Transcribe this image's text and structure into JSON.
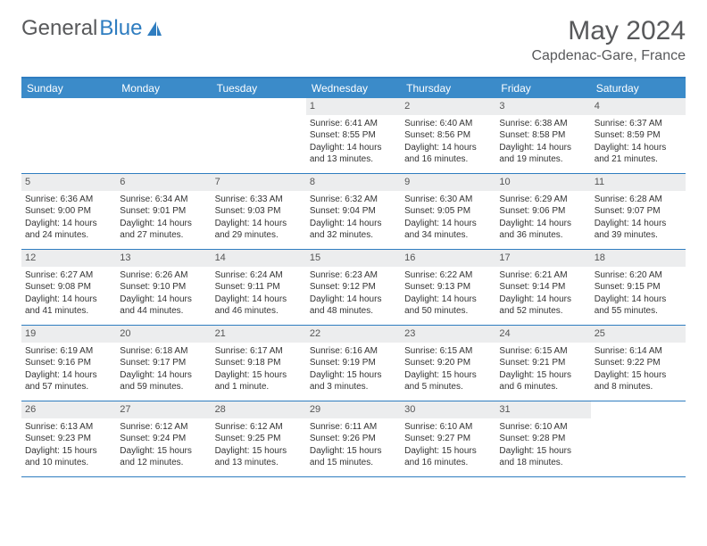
{
  "logo": {
    "text_a": "General",
    "text_b": "Blue"
  },
  "title": "May 2024",
  "location": "Capdenac-Gare, France",
  "colors": {
    "accent": "#2f7dc0",
    "header_bg": "#3b8bc9",
    "daynum_bg": "#ecedee",
    "text": "#58595b"
  },
  "day_names": [
    "Sunday",
    "Monday",
    "Tuesday",
    "Wednesday",
    "Thursday",
    "Friday",
    "Saturday"
  ],
  "weeks": [
    [
      {
        "n": "",
        "sr": "",
        "ss": "",
        "d1": "",
        "d2": ""
      },
      {
        "n": "",
        "sr": "",
        "ss": "",
        "d1": "",
        "d2": ""
      },
      {
        "n": "",
        "sr": "",
        "ss": "",
        "d1": "",
        "d2": ""
      },
      {
        "n": "1",
        "sr": "Sunrise: 6:41 AM",
        "ss": "Sunset: 8:55 PM",
        "d1": "Daylight: 14 hours",
        "d2": "and 13 minutes."
      },
      {
        "n": "2",
        "sr": "Sunrise: 6:40 AM",
        "ss": "Sunset: 8:56 PM",
        "d1": "Daylight: 14 hours",
        "d2": "and 16 minutes."
      },
      {
        "n": "3",
        "sr": "Sunrise: 6:38 AM",
        "ss": "Sunset: 8:58 PM",
        "d1": "Daylight: 14 hours",
        "d2": "and 19 minutes."
      },
      {
        "n": "4",
        "sr": "Sunrise: 6:37 AM",
        "ss": "Sunset: 8:59 PM",
        "d1": "Daylight: 14 hours",
        "d2": "and 21 minutes."
      }
    ],
    [
      {
        "n": "5",
        "sr": "Sunrise: 6:36 AM",
        "ss": "Sunset: 9:00 PM",
        "d1": "Daylight: 14 hours",
        "d2": "and 24 minutes."
      },
      {
        "n": "6",
        "sr": "Sunrise: 6:34 AM",
        "ss": "Sunset: 9:01 PM",
        "d1": "Daylight: 14 hours",
        "d2": "and 27 minutes."
      },
      {
        "n": "7",
        "sr": "Sunrise: 6:33 AM",
        "ss": "Sunset: 9:03 PM",
        "d1": "Daylight: 14 hours",
        "d2": "and 29 minutes."
      },
      {
        "n": "8",
        "sr": "Sunrise: 6:32 AM",
        "ss": "Sunset: 9:04 PM",
        "d1": "Daylight: 14 hours",
        "d2": "and 32 minutes."
      },
      {
        "n": "9",
        "sr": "Sunrise: 6:30 AM",
        "ss": "Sunset: 9:05 PM",
        "d1": "Daylight: 14 hours",
        "d2": "and 34 minutes."
      },
      {
        "n": "10",
        "sr": "Sunrise: 6:29 AM",
        "ss": "Sunset: 9:06 PM",
        "d1": "Daylight: 14 hours",
        "d2": "and 36 minutes."
      },
      {
        "n": "11",
        "sr": "Sunrise: 6:28 AM",
        "ss": "Sunset: 9:07 PM",
        "d1": "Daylight: 14 hours",
        "d2": "and 39 minutes."
      }
    ],
    [
      {
        "n": "12",
        "sr": "Sunrise: 6:27 AM",
        "ss": "Sunset: 9:08 PM",
        "d1": "Daylight: 14 hours",
        "d2": "and 41 minutes."
      },
      {
        "n": "13",
        "sr": "Sunrise: 6:26 AM",
        "ss": "Sunset: 9:10 PM",
        "d1": "Daylight: 14 hours",
        "d2": "and 44 minutes."
      },
      {
        "n": "14",
        "sr": "Sunrise: 6:24 AM",
        "ss": "Sunset: 9:11 PM",
        "d1": "Daylight: 14 hours",
        "d2": "and 46 minutes."
      },
      {
        "n": "15",
        "sr": "Sunrise: 6:23 AM",
        "ss": "Sunset: 9:12 PM",
        "d1": "Daylight: 14 hours",
        "d2": "and 48 minutes."
      },
      {
        "n": "16",
        "sr": "Sunrise: 6:22 AM",
        "ss": "Sunset: 9:13 PM",
        "d1": "Daylight: 14 hours",
        "d2": "and 50 minutes."
      },
      {
        "n": "17",
        "sr": "Sunrise: 6:21 AM",
        "ss": "Sunset: 9:14 PM",
        "d1": "Daylight: 14 hours",
        "d2": "and 52 minutes."
      },
      {
        "n": "18",
        "sr": "Sunrise: 6:20 AM",
        "ss": "Sunset: 9:15 PM",
        "d1": "Daylight: 14 hours",
        "d2": "and 55 minutes."
      }
    ],
    [
      {
        "n": "19",
        "sr": "Sunrise: 6:19 AM",
        "ss": "Sunset: 9:16 PM",
        "d1": "Daylight: 14 hours",
        "d2": "and 57 minutes."
      },
      {
        "n": "20",
        "sr": "Sunrise: 6:18 AM",
        "ss": "Sunset: 9:17 PM",
        "d1": "Daylight: 14 hours",
        "d2": "and 59 minutes."
      },
      {
        "n": "21",
        "sr": "Sunrise: 6:17 AM",
        "ss": "Sunset: 9:18 PM",
        "d1": "Daylight: 15 hours",
        "d2": "and 1 minute."
      },
      {
        "n": "22",
        "sr": "Sunrise: 6:16 AM",
        "ss": "Sunset: 9:19 PM",
        "d1": "Daylight: 15 hours",
        "d2": "and 3 minutes."
      },
      {
        "n": "23",
        "sr": "Sunrise: 6:15 AM",
        "ss": "Sunset: 9:20 PM",
        "d1": "Daylight: 15 hours",
        "d2": "and 5 minutes."
      },
      {
        "n": "24",
        "sr": "Sunrise: 6:15 AM",
        "ss": "Sunset: 9:21 PM",
        "d1": "Daylight: 15 hours",
        "d2": "and 6 minutes."
      },
      {
        "n": "25",
        "sr": "Sunrise: 6:14 AM",
        "ss": "Sunset: 9:22 PM",
        "d1": "Daylight: 15 hours",
        "d2": "and 8 minutes."
      }
    ],
    [
      {
        "n": "26",
        "sr": "Sunrise: 6:13 AM",
        "ss": "Sunset: 9:23 PM",
        "d1": "Daylight: 15 hours",
        "d2": "and 10 minutes."
      },
      {
        "n": "27",
        "sr": "Sunrise: 6:12 AM",
        "ss": "Sunset: 9:24 PM",
        "d1": "Daylight: 15 hours",
        "d2": "and 12 minutes."
      },
      {
        "n": "28",
        "sr": "Sunrise: 6:12 AM",
        "ss": "Sunset: 9:25 PM",
        "d1": "Daylight: 15 hours",
        "d2": "and 13 minutes."
      },
      {
        "n": "29",
        "sr": "Sunrise: 6:11 AM",
        "ss": "Sunset: 9:26 PM",
        "d1": "Daylight: 15 hours",
        "d2": "and 15 minutes."
      },
      {
        "n": "30",
        "sr": "Sunrise: 6:10 AM",
        "ss": "Sunset: 9:27 PM",
        "d1": "Daylight: 15 hours",
        "d2": "and 16 minutes."
      },
      {
        "n": "31",
        "sr": "Sunrise: 6:10 AM",
        "ss": "Sunset: 9:28 PM",
        "d1": "Daylight: 15 hours",
        "d2": "and 18 minutes."
      },
      {
        "n": "",
        "sr": "",
        "ss": "",
        "d1": "",
        "d2": ""
      }
    ]
  ]
}
